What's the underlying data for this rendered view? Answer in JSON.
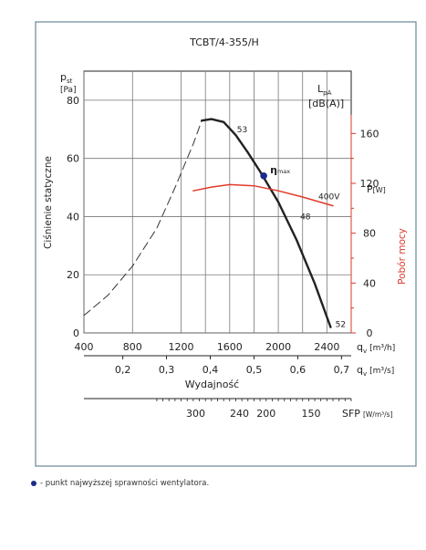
{
  "chart_data": {
    "type": "line",
    "title": "TCBT/4-355/H",
    "ylabel": "Ciśnienie statyczne",
    "y_symbol": "p",
    "y_symbol_sub": "st",
    "y_unit": "[Pa]",
    "xlim": [
      400,
      2600
    ],
    "ylim": [
      0,
      90
    ],
    "x_ticks": [
      400,
      800,
      1200,
      1600,
      2000,
      2400
    ],
    "x_ticks_labels": [
      "400",
      "800",
      "1200",
      "1600",
      "2000",
      "2400"
    ],
    "y_ticks": [
      0,
      20,
      40,
      60,
      80
    ],
    "y_ticks_labels": [
      "0",
      "20",
      "40",
      "60",
      "80"
    ],
    "x_axis_label": "q",
    "x_axis_label_sub": "v",
    "x_axis_unit": "[m³/h]",
    "x2_ticks": [
      0.2,
      0.3,
      0.4,
      0.5,
      0.6,
      0.7
    ],
    "x2_ticks_labels": [
      "0,2",
      "0,3",
      "0,4",
      "0,5",
      "0,6",
      "0,7"
    ],
    "x2_axis_label": "q",
    "x2_axis_label_sub": "v",
    "x2_axis_unit": "[m³/s]",
    "x2_caption": "Wydajność",
    "sfp_ticks": [
      300,
      240,
      200,
      150
    ],
    "sfp_ticks_labels": [
      "300",
      "240",
      "200",
      "150"
    ],
    "sfp_positions": [
      1320,
      1680,
      1900,
      2270
    ],
    "sfp_label": "SFP",
    "sfp_unit": "[W/m³/s]",
    "y2_label": "Pobór mocy",
    "y2_symbol": "P",
    "y2_unit": "[W]",
    "y2_ticks": [
      0,
      40,
      80,
      120,
      160
    ],
    "y2_ticks_labels": [
      "0",
      "40",
      "80",
      "120",
      "160"
    ],
    "y2_lim": [
      0,
      210
    ],
    "lpa_label": "L",
    "lpa_sub": "pA",
    "lpa_unit": "[dB(A)]",
    "series": [
      {
        "kind": "pressure-dashed",
        "x": [
          400,
          600,
          800,
          1000,
          1150,
          1300,
          1370
        ],
        "y": [
          6,
          13,
          23,
          36,
          50,
          65,
          73
        ]
      },
      {
        "kind": "pressure-solid",
        "x": [
          1370,
          1450,
          1550,
          1650,
          1750,
          1850,
          2000,
          2150,
          2300,
          2430
        ],
        "y": [
          73,
          73.5,
          72.5,
          68,
          62,
          55.5,
          45,
          32,
          17,
          2
        ]
      },
      {
        "kind": "power",
        "name": "400V",
        "x": [
          1300,
          1450,
          1600,
          1800,
          2000,
          2200,
          2450
        ],
        "y": [
          114,
          117,
          119,
          118,
          114,
          109,
          102
        ]
      }
    ],
    "noise_labels": [
      {
        "text": "53",
        "x": 1660,
        "y": 70
      },
      {
        "text": "48",
        "x": 2180,
        "y": 40
      },
      {
        "text": "52",
        "x": 2470,
        "y": 3
      }
    ],
    "max_eff": {
      "x": 1880,
      "y": 54,
      "label": "η",
      "label_sub": "max"
    },
    "footnote": "- punkt najwyższej sprawności wentylatora."
  }
}
